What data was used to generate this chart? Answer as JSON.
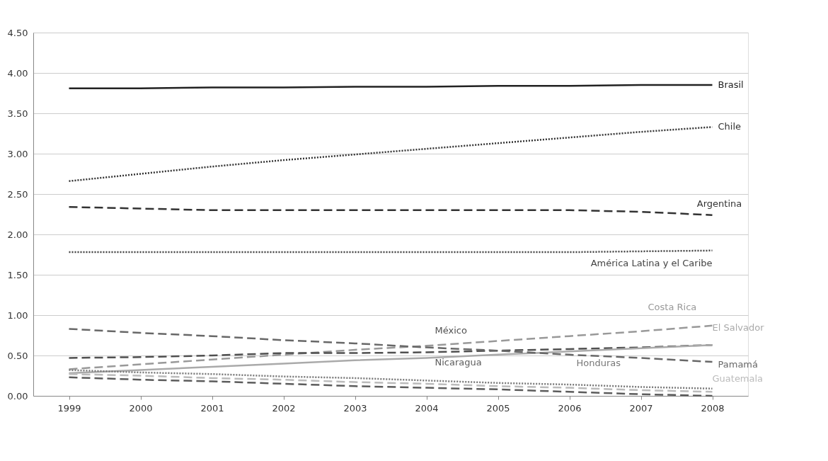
{
  "chart_data": {
    "type": "line",
    "categories": [
      "1999",
      "2000",
      "2001",
      "2002",
      "2003",
      "2004",
      "2005",
      "2006",
      "2007",
      "2008"
    ],
    "ylim": [
      0,
      4.5
    ],
    "yticks": [
      {
        "value": 0,
        "label": "0.00"
      },
      {
        "value": 0.5,
        "label": "0.50"
      },
      {
        "value": 1,
        "label": "1.00"
      },
      {
        "value": 1.5,
        "label": "1.50"
      },
      {
        "value": 2,
        "label": "2.00"
      },
      {
        "value": 2.5,
        "label": "2.50"
      },
      {
        "value": 3,
        "label": "3.00"
      },
      {
        "value": 3.5,
        "label": "3.50"
      },
      {
        "value": 4,
        "label": "4.00"
      },
      {
        "value": 4.5,
        "label": "4.50"
      }
    ],
    "grid": "y",
    "marker": "none",
    "series": [
      {
        "name": "Brasil",
        "color": "#222222",
        "line_style": "solid",
        "values": [
          3.81,
          3.81,
          3.82,
          3.82,
          3.83,
          3.83,
          3.84,
          3.84,
          3.85,
          3.85
        ]
      },
      {
        "name": "Chile",
        "color": "#333333",
        "line_style": "dotted",
        "values": [
          2.66,
          2.75,
          2.84,
          2.92,
          2.99,
          3.06,
          3.13,
          3.2,
          3.27,
          3.33
        ]
      },
      {
        "name": "Argentina",
        "color": "#333333",
        "line_style": "dashed",
        "values": [
          2.34,
          2.32,
          2.3,
          2.3,
          2.3,
          2.3,
          2.3,
          2.3,
          2.28,
          2.24
        ]
      },
      {
        "name": "América Latina y el Caribe",
        "color": "#444444",
        "line_style": "dotted",
        "values": [
          1.78,
          1.78,
          1.78,
          1.78,
          1.78,
          1.78,
          1.78,
          1.78,
          1.79,
          1.8
        ]
      },
      {
        "name": "Costa Rica",
        "color": "#999999",
        "line_style": "dashed",
        "values": [
          0.33,
          0.39,
          0.45,
          0.51,
          0.57,
          0.62,
          0.68,
          0.74,
          0.8,
          0.87
        ]
      },
      {
        "name": "México",
        "color": "#505050",
        "line_style": "dashed",
        "values": [
          0.47,
          0.48,
          0.5,
          0.53,
          0.53,
          0.54,
          0.56,
          0.58,
          0.6,
          0.63
        ]
      },
      {
        "name": "El Salvador",
        "color": "#aaaaaa",
        "line_style": "solid",
        "values": [
          0.28,
          0.32,
          0.36,
          0.4,
          0.44,
          0.47,
          0.51,
          0.55,
          0.59,
          0.63
        ]
      },
      {
        "name": "Pamamá",
        "color": "#686868",
        "line_style": "dashed",
        "values": [
          0.83,
          0.78,
          0.74,
          0.69,
          0.65,
          0.6,
          0.56,
          0.51,
          0.47,
          0.42
        ]
      },
      {
        "name": "Nicaragua",
        "color": "#5c5c5c",
        "line_style": "dashed",
        "values": [
          0.23,
          0.2,
          0.18,
          0.15,
          0.12,
          0.1,
          0.08,
          0.05,
          0.02,
          0.0
        ]
      },
      {
        "name": "Honduras",
        "color": "#787878",
        "line_style": "dotted",
        "values": [
          0.32,
          0.29,
          0.27,
          0.24,
          0.22,
          0.19,
          0.16,
          0.14,
          0.11,
          0.09
        ]
      },
      {
        "name": "Guatemala",
        "color": "#bbbbbb",
        "line_style": "dashed",
        "values": [
          0.27,
          0.25,
          0.22,
          0.2,
          0.17,
          0.15,
          0.12,
          0.1,
          0.07,
          0.05
        ]
      }
    ]
  }
}
